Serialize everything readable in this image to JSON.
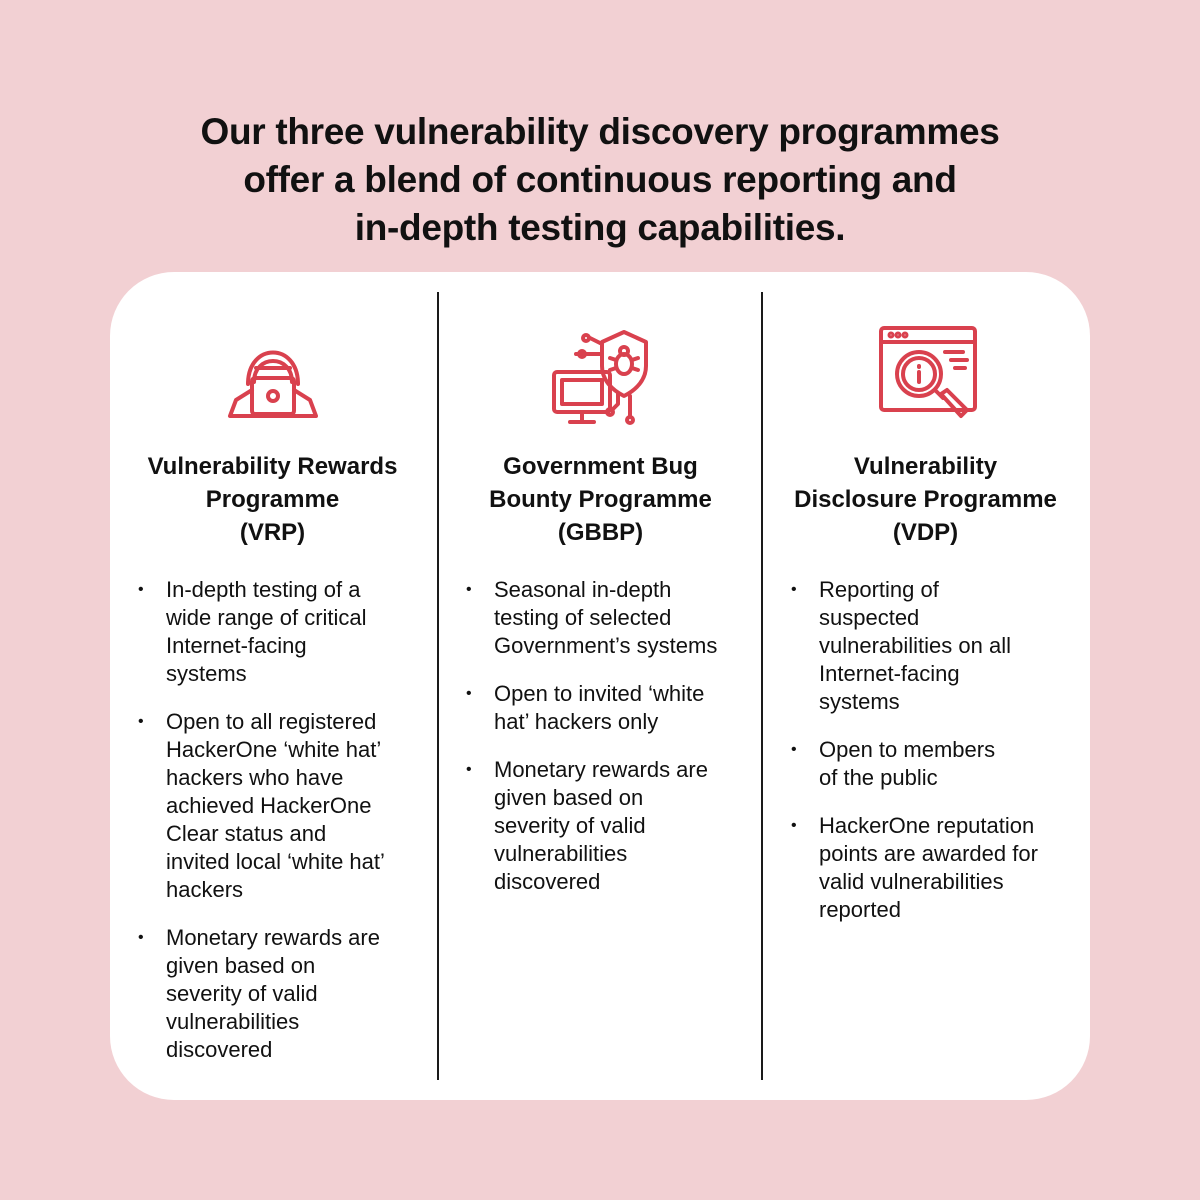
{
  "headline": {
    "lines": [
      "Our three vulnerability discovery programmes",
      "offer a blend of continuous reporting and",
      "in-depth testing capabilities."
    ]
  },
  "colors": {
    "background": "#f2d0d3",
    "card": "#ffffff",
    "accent": "#d9414e",
    "text": "#111111"
  },
  "programmes": [
    {
      "icon": "hacker-laptop-icon",
      "title_lines": [
        "Vulnerability Rewards",
        "Programme",
        "(VRP)"
      ],
      "bullets": [
        [
          "In-depth testing of a",
          "wide range of critical",
          "Internet-facing",
          "systems"
        ],
        [
          "Open to all registered",
          "HackerOne ‘white hat’",
          "hackers who have",
          "achieved HackerOne",
          "Clear status and",
          "invited local ‘white hat’",
          "hackers"
        ],
        [
          "Monetary rewards are",
          "given based on",
          "severity of valid",
          "vulnerabilities",
          "discovered"
        ]
      ]
    },
    {
      "icon": "bug-shield-monitor-icon",
      "title_lines": [
        "Government Bug",
        "Bounty Programme",
        "(GBBP)"
      ],
      "bullets": [
        [
          "Seasonal in-depth",
          "testing of selected",
          "Government’s systems"
        ],
        [
          "Open to invited ‘white",
          "hat’ hackers only"
        ],
        [
          "Monetary rewards are",
          "given based on",
          "severity of valid",
          "vulnerabilities",
          "discovered"
        ]
      ]
    },
    {
      "icon": "browser-magnifier-icon",
      "title_lines": [
        "Vulnerability",
        "Disclosure Programme",
        "(VDP)"
      ],
      "bullets": [
        [
          "Reporting of",
          "suspected",
          "vulnerabilities on all",
          "Internet-facing",
          "systems"
        ],
        [
          "Open to members",
          "of the public"
        ],
        [
          "HackerOne reputation",
          "points are awarded for",
          "valid vulnerabilities",
          "reported"
        ]
      ]
    }
  ]
}
